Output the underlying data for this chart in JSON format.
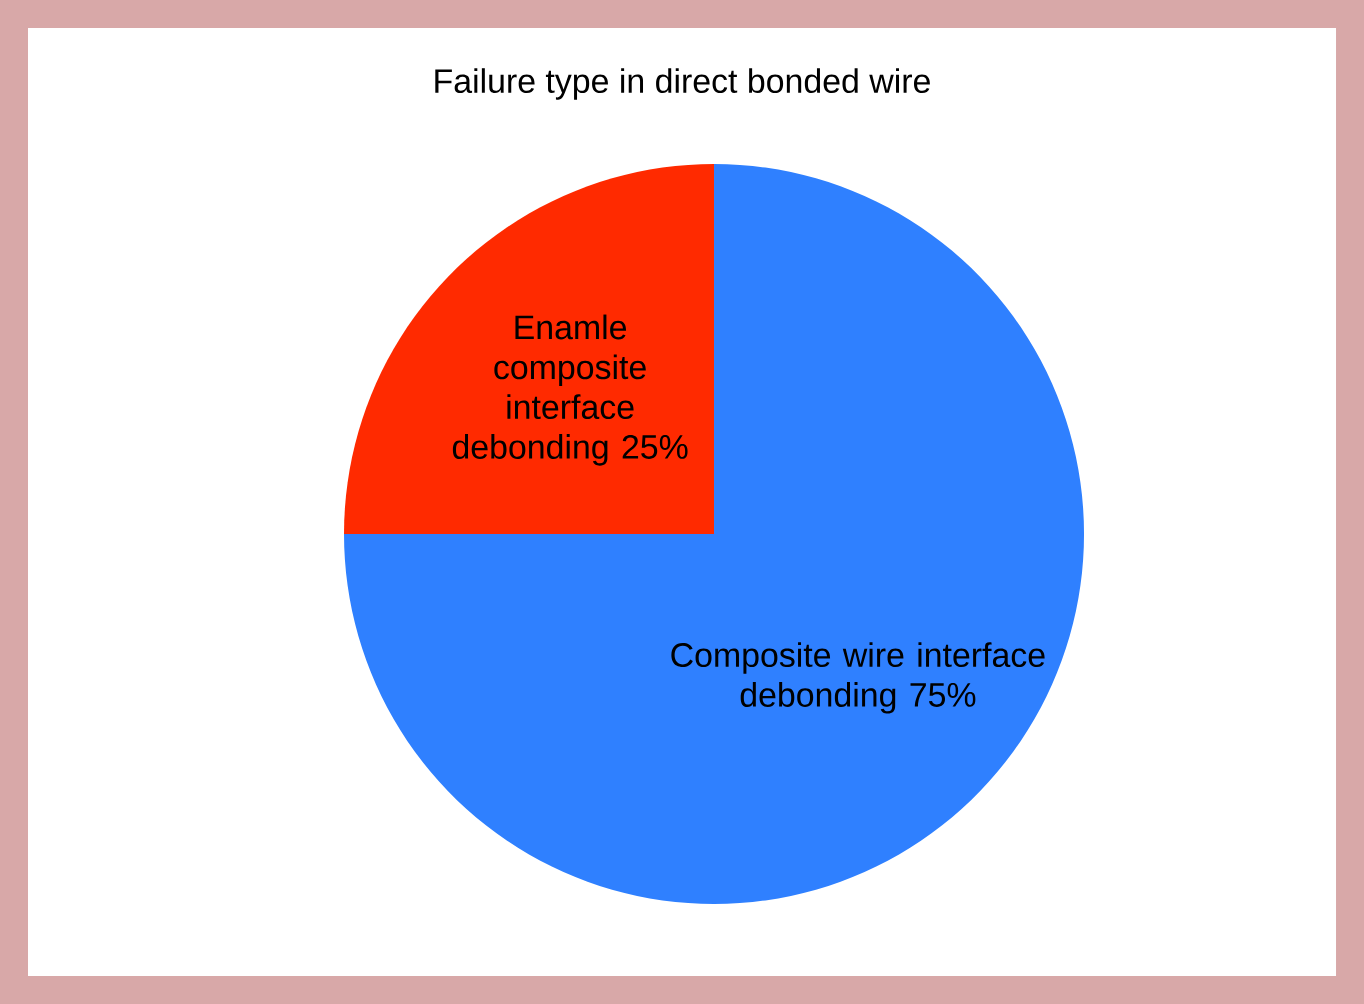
{
  "chart_data": {
    "type": "pie",
    "title": "Failure type in direct bonded wire",
    "categories": [
      "Enamle composite interface debonding",
      "Composite wire interface debonding"
    ],
    "values": [
      25,
      75
    ],
    "colors": [
      "#ff2a00",
      "#2f80ff"
    ],
    "value_labels": [
      "25%",
      "75%"
    ]
  }
}
